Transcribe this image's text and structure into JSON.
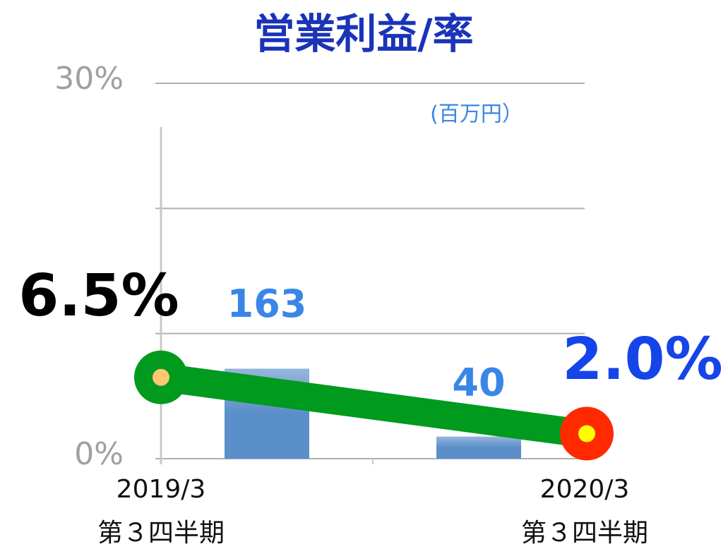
{
  "chart_data": {
    "type": "bar-line",
    "title": "営業利益/率",
    "annotation": "(百万円）",
    "categories": [
      [
        "2019/3",
        "第３四半期"
      ],
      [
        "2020/3",
        "第３四半期"
      ]
    ],
    "ylim": [
      0,
      30
    ],
    "yticks": [
      {
        "value": 0,
        "label": "0%"
      },
      {
        "value": 10,
        "label": null
      },
      {
        "value": 20,
        "label": null
      },
      {
        "value": 30,
        "label": "30%"
      }
    ],
    "y2lim": [
      0,
      680
    ],
    "grid": true,
    "series": [
      {
        "type": "bar",
        "axis": "y2",
        "color": "#5b8fc9",
        "label_color": "#3a86e8",
        "values": [
          163,
          40
        ]
      },
      {
        "type": "line",
        "color": "#009a1e",
        "values": [
          6.5,
          2.0
        ],
        "value_labels": [
          "6.5%",
          "2.0%"
        ],
        "label_colors": [
          "#000000",
          "#1545e8"
        ],
        "marker_colors": [
          [
            "#009a1e",
            "#ffc870"
          ],
          [
            "#ff2a00",
            "#ffff00"
          ]
        ]
      }
    ]
  }
}
